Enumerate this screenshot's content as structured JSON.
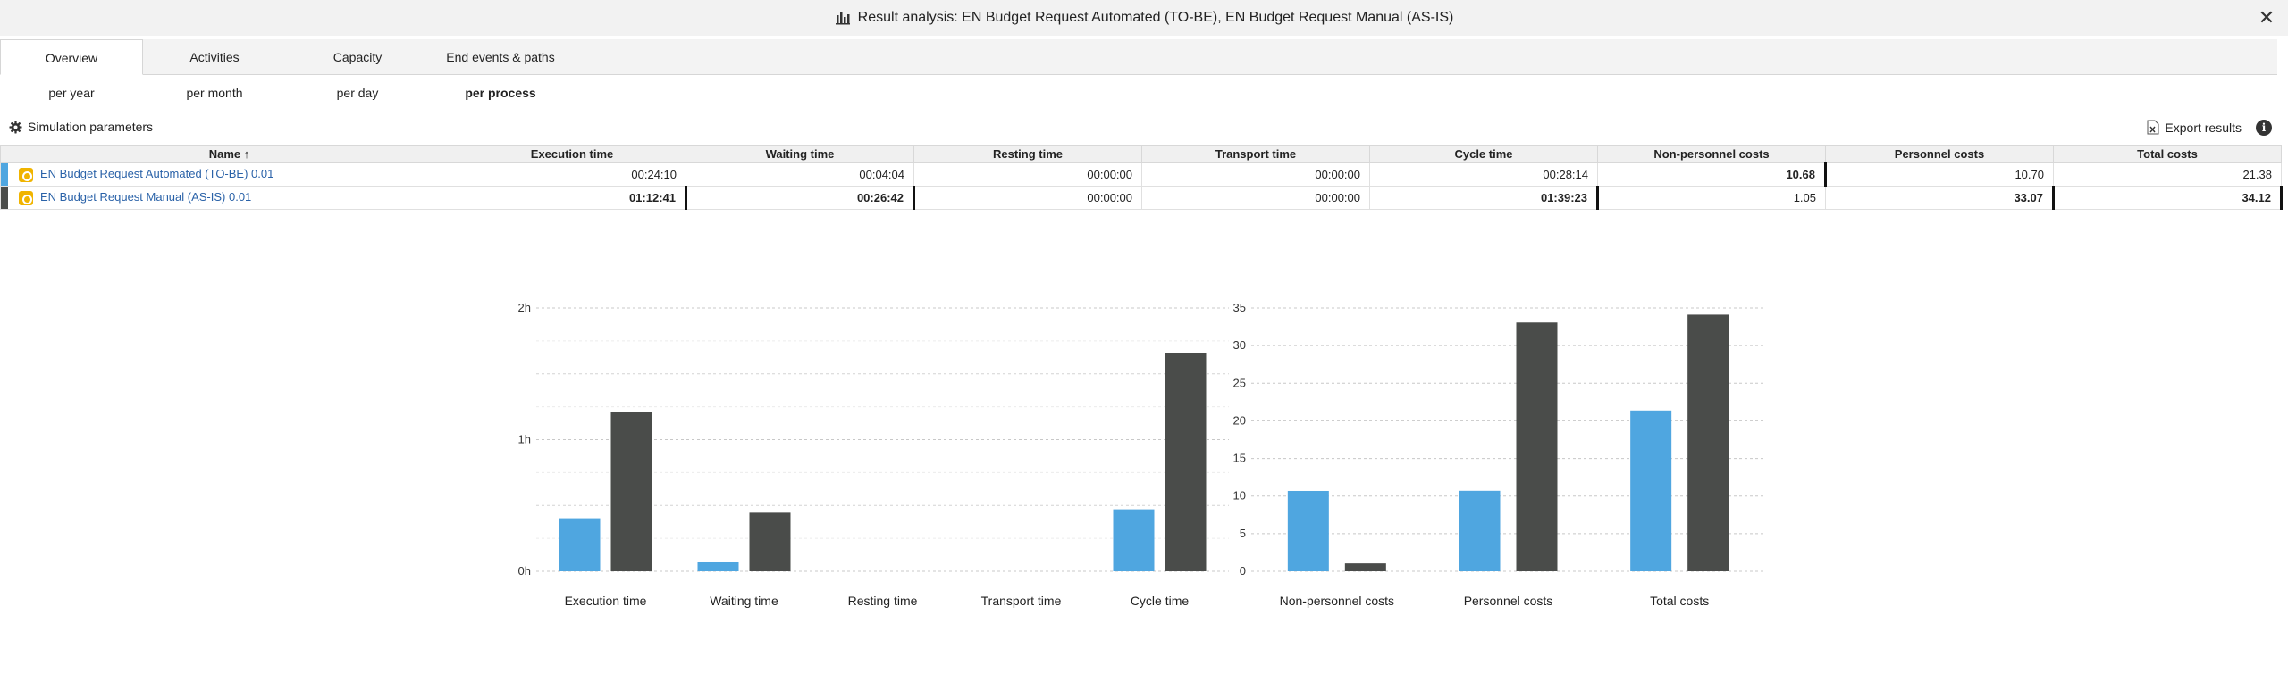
{
  "window": {
    "title": "Result analysis: EN Budget Request Automated (TO-BE), EN Budget Request Manual (AS-IS)",
    "close_label": "✕"
  },
  "tabs": [
    {
      "label": "Overview",
      "active": true
    },
    {
      "label": "Activities"
    },
    {
      "label": "Capacity"
    },
    {
      "label": "End events & paths"
    }
  ],
  "subtabs": [
    {
      "label": "per year"
    },
    {
      "label": "per month"
    },
    {
      "label": "per day"
    },
    {
      "label": "per process",
      "active": true
    }
  ],
  "toolbar": {
    "sim_params_label": "Simulation parameters",
    "export_label": "Export results",
    "info_label": "i"
  },
  "table": {
    "columns": [
      "Name ↑",
      "Execution time",
      "Waiting time",
      "Resting time",
      "Transport time",
      "Cycle time",
      "Non-personnel costs",
      "Personnel costs",
      "Total costs"
    ],
    "rows": [
      {
        "color": "#4fa6e0",
        "cells": [
          "EN Budget Request Automated (TO-BE) 0.01",
          "00:24:10",
          "00:04:04",
          "00:00:00",
          "00:00:00",
          "00:28:14",
          "10.68",
          "10.70",
          "21.38"
        ],
        "bold": [
          false,
          false,
          false,
          false,
          false,
          false,
          true,
          false,
          false
        ]
      },
      {
        "color": "#4a4c4a",
        "cells": [
          "EN Budget Request Manual (AS-IS) 0.01",
          "01:12:41",
          "00:26:42",
          "00:00:00",
          "00:00:00",
          "01:39:23",
          "1.05",
          "33.07",
          "34.12"
        ],
        "bold": [
          false,
          true,
          true,
          false,
          false,
          true,
          false,
          true,
          true
        ]
      }
    ]
  },
  "chart_data": [
    {
      "type": "bar",
      "categories": [
        "Execution time",
        "Waiting time",
        "Resting time",
        "Transport time",
        "Cycle time"
      ],
      "series": [
        {
          "values": [
            24.17,
            4.07,
            0,
            0,
            28.23
          ],
          "color": "#4fa6e0"
        },
        {
          "values": [
            72.68,
            26.7,
            0,
            0,
            99.38
          ],
          "color": "#4a4c4a"
        }
      ],
      "ylim": [
        0,
        120
      ],
      "yticks": [
        {
          "value": 0,
          "label": "0h"
        },
        {
          "value": 60,
          "label": "1h"
        },
        {
          "value": 120,
          "label": "2h"
        }
      ],
      "grid": true
    },
    {
      "type": "bar",
      "categories": [
        "Non-personnel costs",
        "Personnel costs",
        "Total costs"
      ],
      "series": [
        {
          "values": [
            10.68,
            10.7,
            21.38
          ],
          "color": "#4fa6e0"
        },
        {
          "values": [
            1.05,
            33.07,
            34.12
          ],
          "color": "#4a4c4a"
        }
      ],
      "ylim": [
        0,
        35
      ],
      "yticks": [
        {
          "value": 0,
          "label": "0"
        },
        {
          "value": 5,
          "label": "5"
        },
        {
          "value": 10,
          "label": "10"
        },
        {
          "value": 15,
          "label": "15"
        },
        {
          "value": 20,
          "label": "20"
        },
        {
          "value": 25,
          "label": "25"
        },
        {
          "value": 30,
          "label": "30"
        },
        {
          "value": 35,
          "label": "35"
        }
      ],
      "grid": true
    }
  ]
}
